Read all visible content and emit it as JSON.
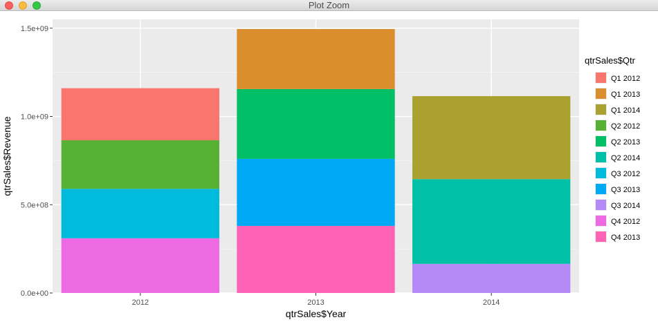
{
  "window": {
    "title": "Plot Zoom"
  },
  "colors": {
    "Q1 2012": "#F8766D",
    "Q1 2013": "#DB8E2E",
    "Q1 2014": "#ABA131",
    "Q2 2012": "#57B134",
    "Q2 2013": "#00BF66",
    "Q2 2014": "#00C1A7",
    "Q3 2012": "#00BBDB",
    "Q3 2013": "#00A9F6",
    "Q3 2014": "#B68AF6",
    "Q4 2012": "#EE6AE2",
    "Q4 2013": "#FF63B5"
  },
  "chart_data": {
    "type": "bar",
    "stacked": true,
    "title": "",
    "xlabel": "qtrSales$Year",
    "ylabel": "qtrSales$Revenue",
    "categories": [
      "2012",
      "2013",
      "2014"
    ],
    "ylim": [
      0,
      1550000000
    ],
    "yticks": [
      0,
      500000000,
      1000000000,
      1500000000
    ],
    "ytick_labels": [
      "0.0e+00",
      "5.0e+08",
      "1.0e+09",
      "1.5e+09"
    ],
    "grid": true,
    "legend": {
      "title": "qtrSales$Qtr",
      "position": "right"
    },
    "series": [
      {
        "name": "Q1 2012",
        "values": [
          295000000,
          0,
          0
        ]
      },
      {
        "name": "Q1 2013",
        "values": [
          0,
          340000000,
          0
        ]
      },
      {
        "name": "Q1 2014",
        "values": [
          0,
          0,
          470000000
        ]
      },
      {
        "name": "Q2 2012",
        "values": [
          275000000,
          0,
          0
        ]
      },
      {
        "name": "Q2 2013",
        "values": [
          0,
          395000000,
          0
        ]
      },
      {
        "name": "Q2 2014",
        "values": [
          0,
          0,
          480000000
        ]
      },
      {
        "name": "Q3 2012",
        "values": [
          280000000,
          0,
          0
        ]
      },
      {
        "name": "Q3 2013",
        "values": [
          0,
          380000000,
          0
        ]
      },
      {
        "name": "Q3 2014",
        "values": [
          0,
          0,
          165000000
        ]
      },
      {
        "name": "Q4 2012",
        "values": [
          310000000,
          0,
          0
        ]
      },
      {
        "name": "Q4 2013",
        "values": [
          0,
          380000000,
          0
        ]
      }
    ]
  }
}
